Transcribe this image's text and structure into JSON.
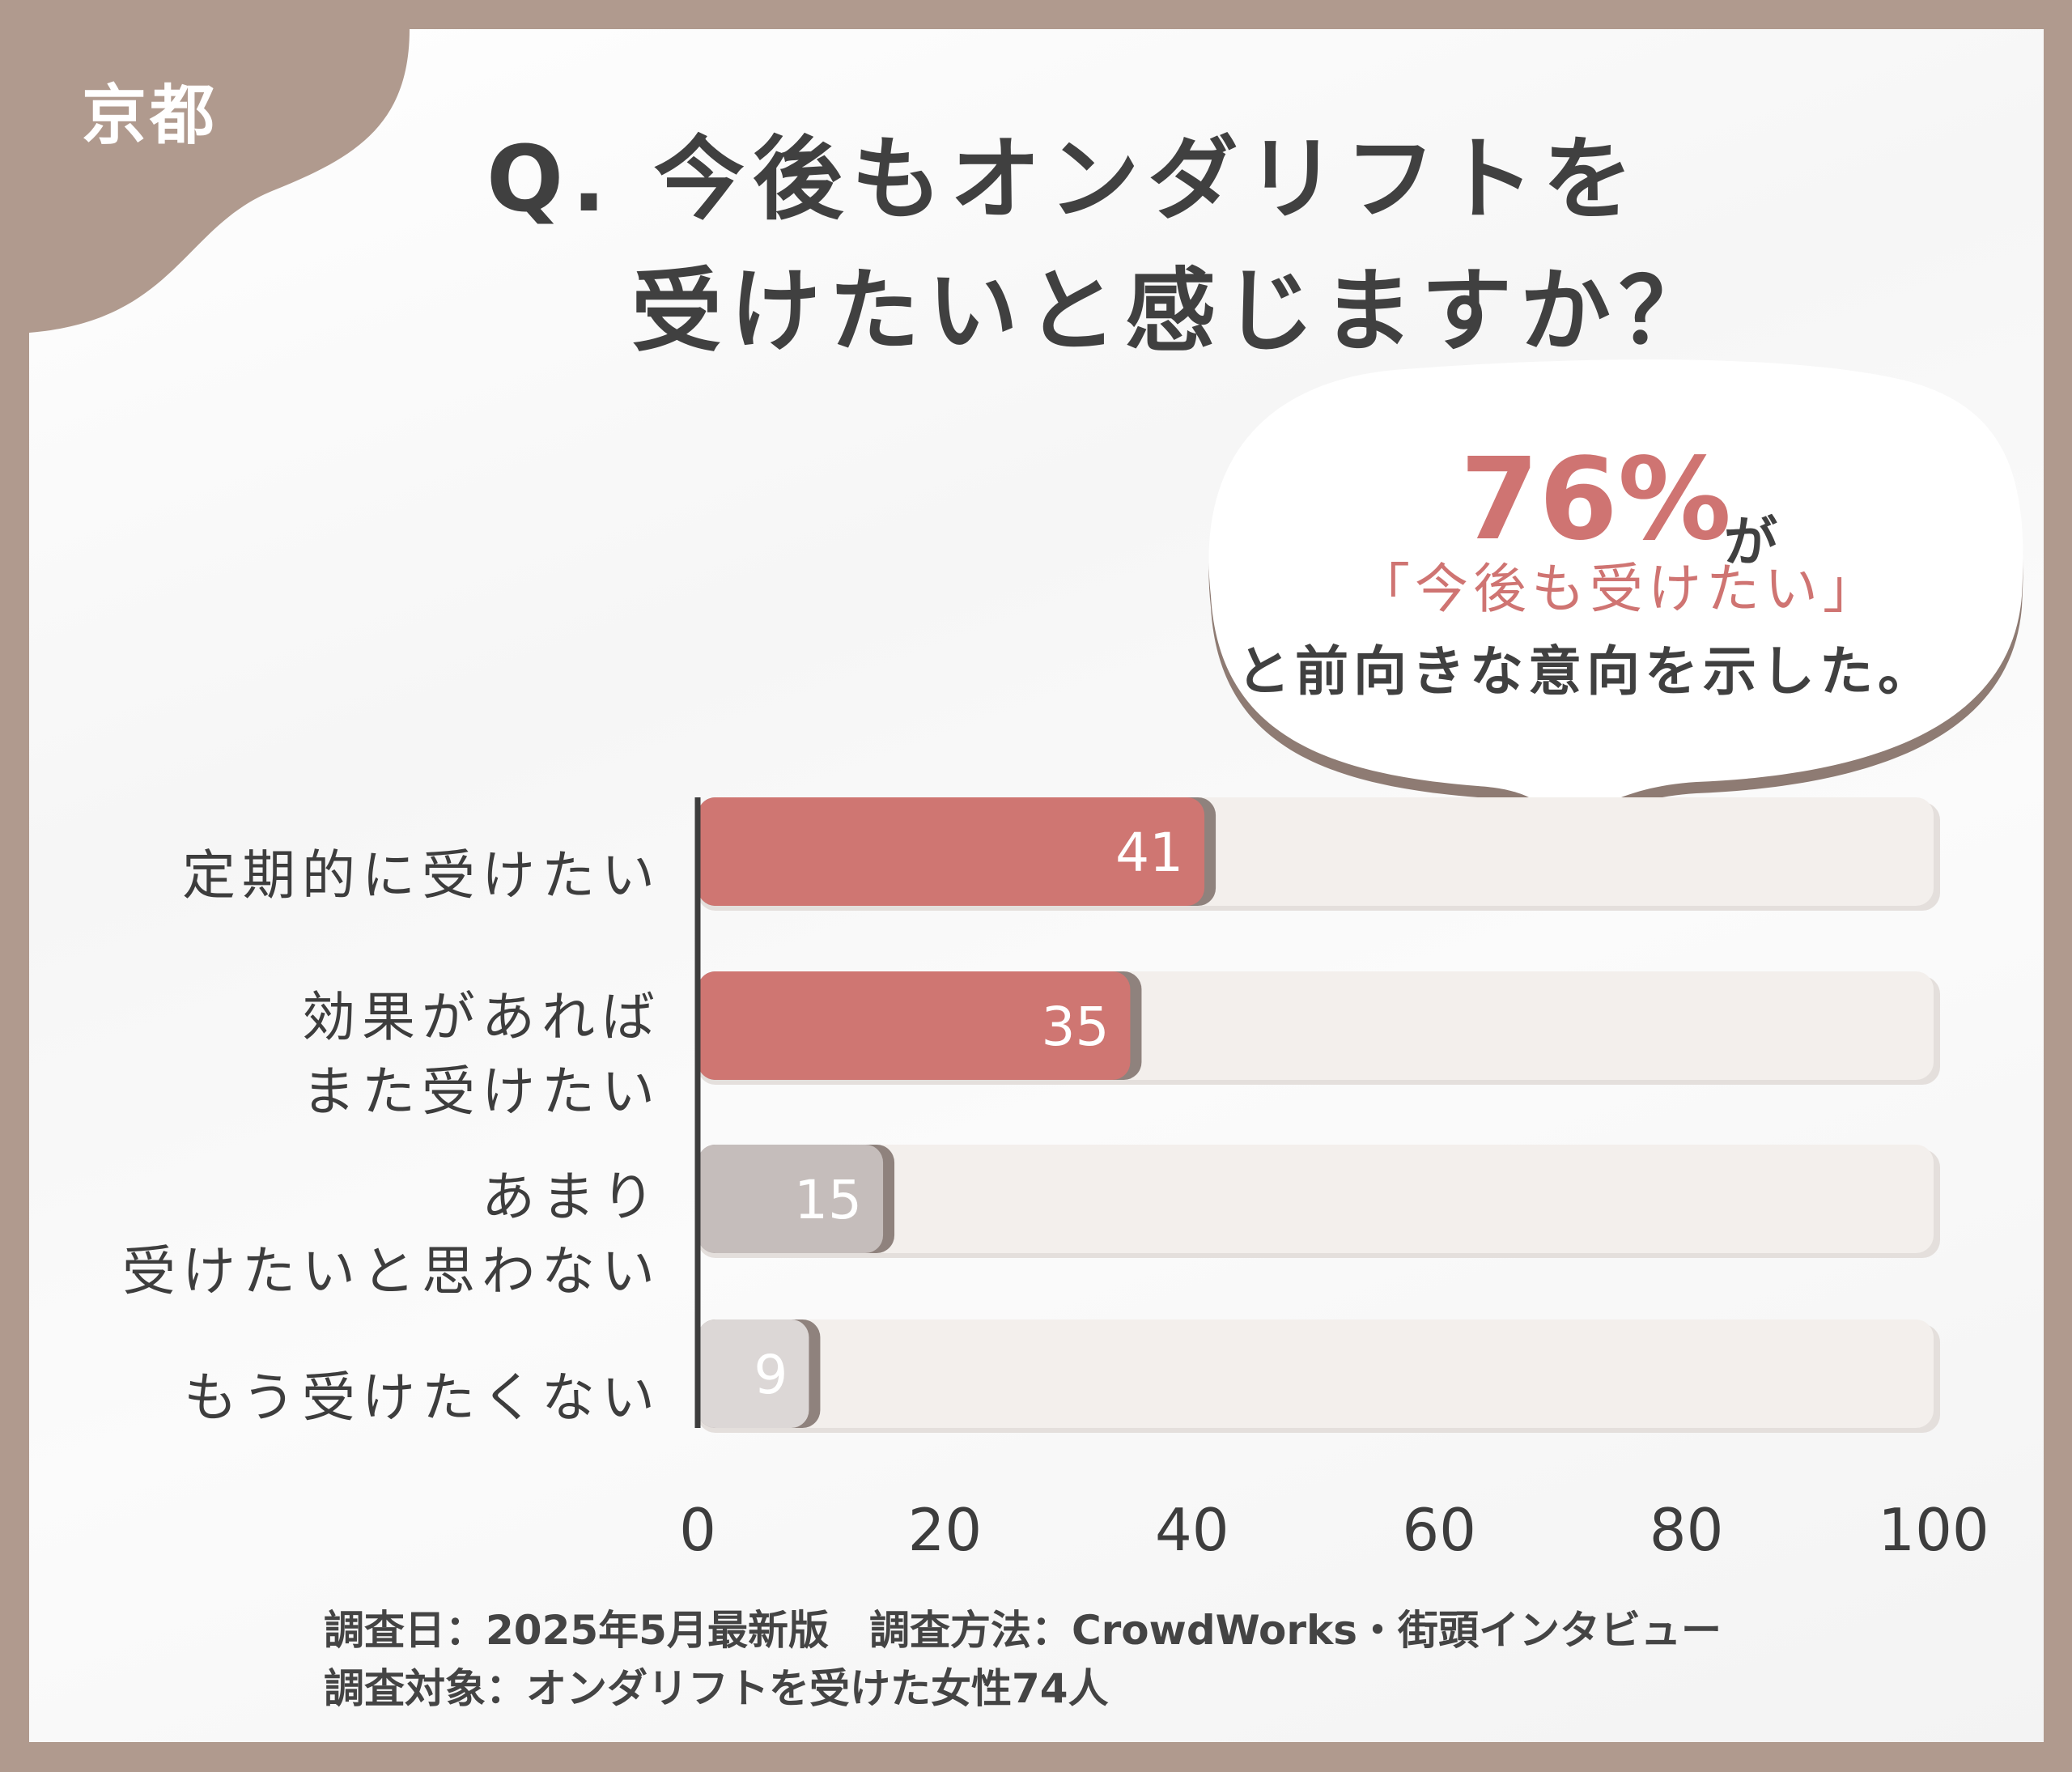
{
  "region_label": "京都",
  "title": {
    "line1": "Q. 今後もオンダリフトを",
    "line2": "受けたいと感じますか？"
  },
  "callout": {
    "percent": "76%",
    "suffix": "が",
    "quote": "「今後も受けたい」",
    "line": "と前向きな意向を示した。"
  },
  "colors": {
    "frame": "#b09a8e",
    "accent": "#cf7472",
    "muted_bar": "#c5bdbb",
    "light_bar": "#dcd7d6",
    "track": "#f3efec"
  },
  "chart_data": {
    "type": "bar",
    "orientation": "horizontal",
    "categories": [
      "定期的に受けたい",
      "効果があれば\nまた受けたい",
      "あまり\n受けたいと思わない",
      "もう受けたくない"
    ],
    "values": [
      41,
      35,
      15,
      9
    ],
    "xlim": [
      0,
      100
    ],
    "xticks": [
      "0",
      "20",
      "40",
      "60",
      "80",
      "100"
    ],
    "grid": false,
    "bar_colors": [
      "#cf7672",
      "#cf7672",
      "#c5bdbb",
      "#dcd7d6"
    ]
  },
  "footer": {
    "line1": "調査日：2025年5月最新版　調査方法：CrowdWorks・街頭インタビュー",
    "line2": "調査対象：オンダリフトを受けた女性74人"
  }
}
